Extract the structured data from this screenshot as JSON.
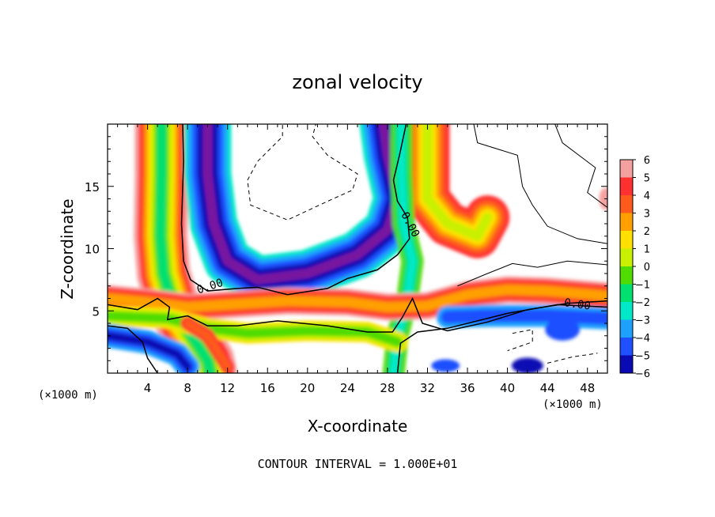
{
  "chart_data": {
    "type": "heatmap",
    "title": "zonal velocity",
    "xlabel": "X-coordinate",
    "ylabel": "Z-coordinate",
    "x_unit_left": "(×1000 m)",
    "x_unit_right": "(×1000 m)",
    "xlim": [
      0,
      50
    ],
    "ylim": [
      0,
      20
    ],
    "x_ticks": [
      4,
      8,
      12,
      16,
      20,
      24,
      28,
      32,
      36,
      40,
      44,
      48
    ],
    "y_ticks": [
      5,
      10,
      15
    ],
    "colorbar_ticks": [
      6,
      5,
      4,
      3,
      2,
      1,
      0,
      -1,
      -2,
      -3,
      -4,
      -5,
      -6
    ],
    "colorbar_range": [
      -6,
      6
    ],
    "contour_label": "0.00",
    "footer": "CONTOUR INTERVAL = 1.000E+01",
    "colors": {
      "6": "#f5a0a0",
      "5": "#ff3030",
      "4": "#ff5a1e",
      "3": "#ffa000",
      "2": "#ffe000",
      "1": "#c8f000",
      "0": "#50dc00",
      "-1": "#00e070",
      "-2": "#00e8c8",
      "-3": "#1ea0ff",
      "-4": "#1e50ff",
      "-5": "#0a0ab4",
      "-6": "#7814a0"
    }
  }
}
